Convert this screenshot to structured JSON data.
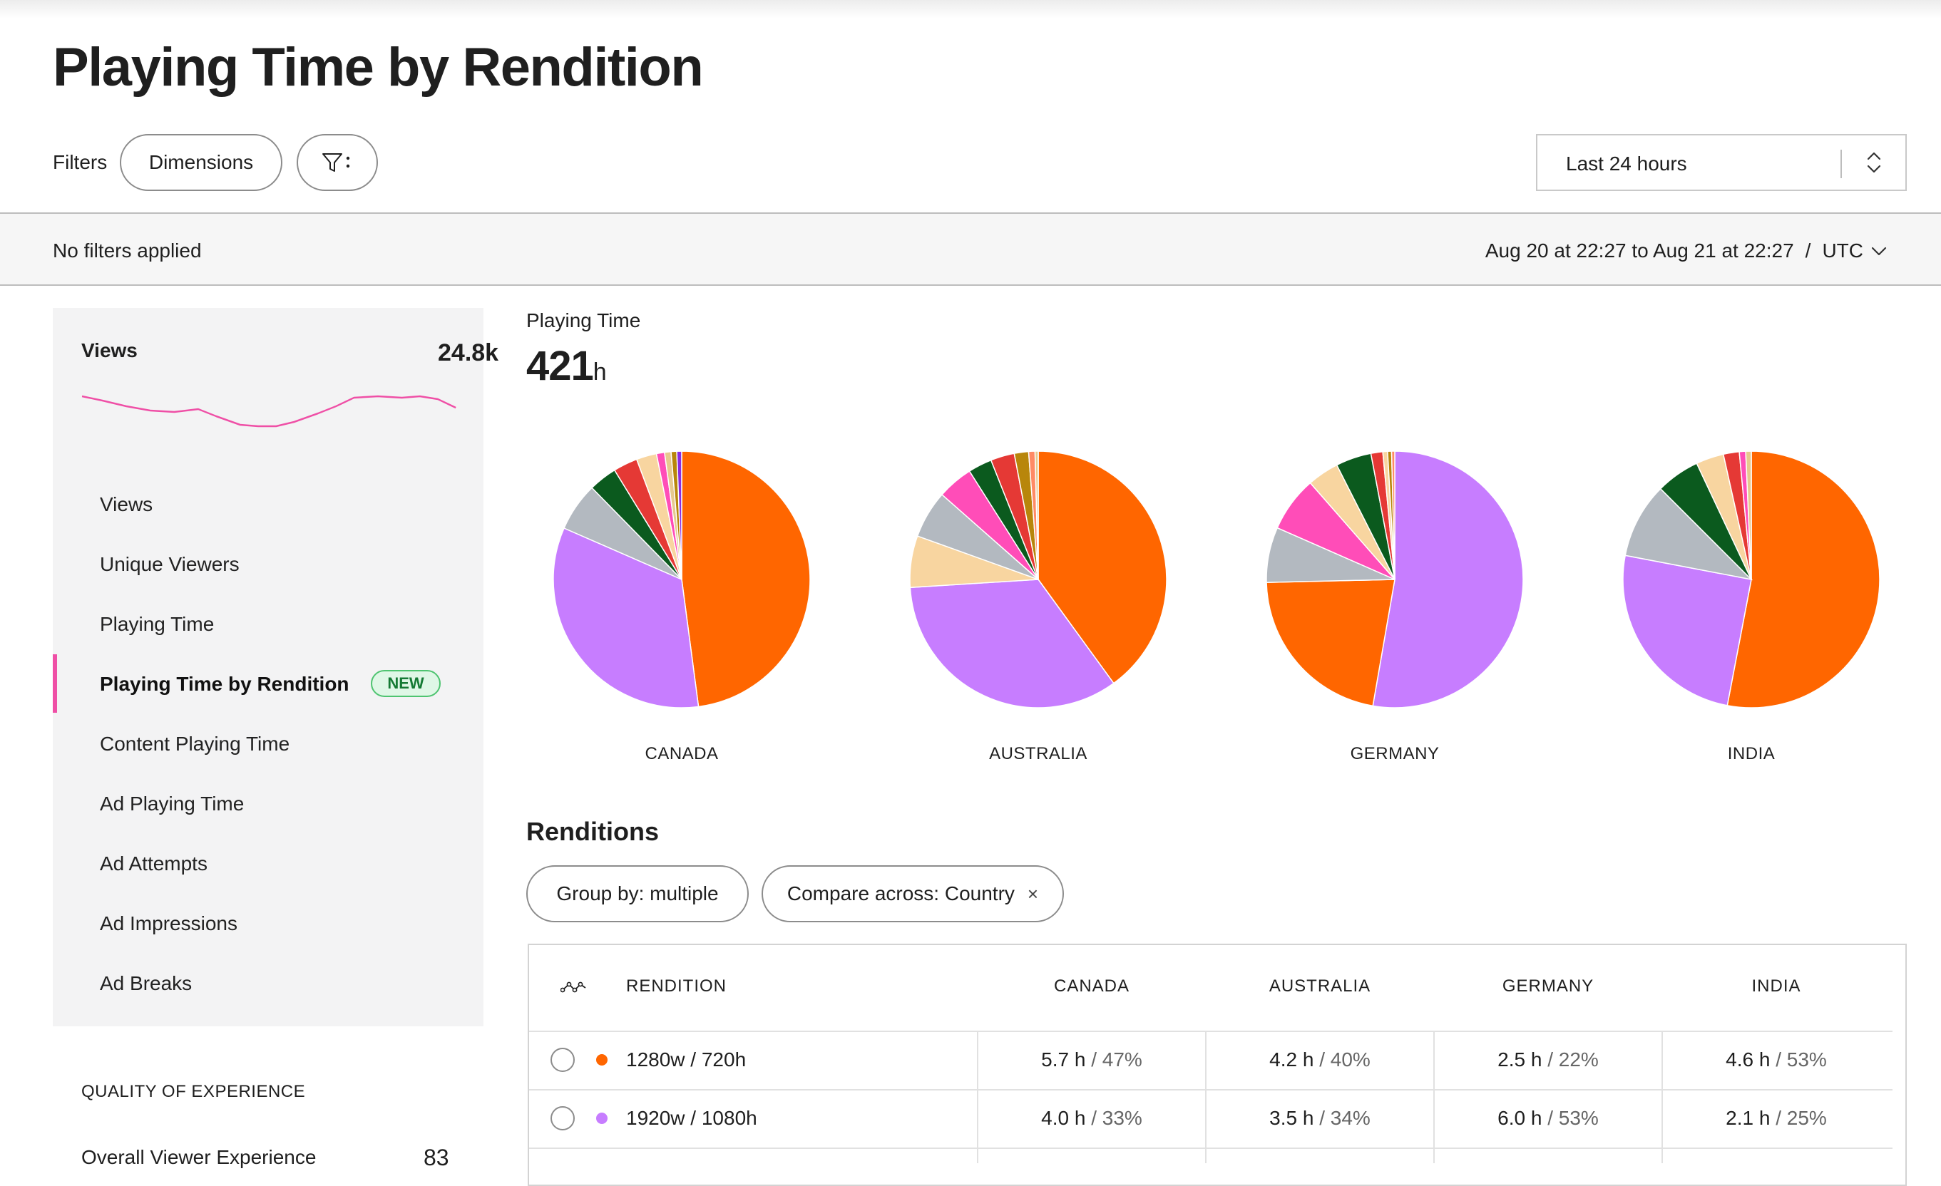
{
  "page": {
    "title": "Playing Time by Rendition"
  },
  "filters": {
    "label": "Filters",
    "dimensions_label": "Dimensions",
    "time_range": "Last 24 hours",
    "status": "No filters applied",
    "date_range": "Aug 20 at 22:27 to Aug 21 at 22:27",
    "separator": "/",
    "timezone": "UTC"
  },
  "sidebar": {
    "views_title": "Views",
    "views_value": "24.8k",
    "sparkline_color": "#ef4fa6",
    "nav": [
      {
        "label": "Views"
      },
      {
        "label": "Unique Viewers"
      },
      {
        "label": "Playing Time"
      },
      {
        "label": "Playing Time by Rendition",
        "badge": "NEW",
        "active": true
      },
      {
        "label": "Content Playing Time"
      },
      {
        "label": "Ad Playing Time"
      },
      {
        "label": "Ad Attempts"
      },
      {
        "label": "Ad Impressions"
      },
      {
        "label": "Ad Breaks"
      }
    ],
    "qoe_title": "QUALITY OF EXPERIENCE",
    "overall_label": "Overall Viewer Experience",
    "overall_value": "83"
  },
  "metric": {
    "label": "Playing Time",
    "value": "421",
    "unit": "h"
  },
  "renditions": {
    "title": "Renditions",
    "group_by": "Group by: multiple",
    "compare": "Compare across: Country",
    "compare_close": "×",
    "columns": [
      "RENDITION",
      "CANADA",
      "AUSTRALIA",
      "GERMANY",
      "INDIA"
    ],
    "rows": [
      {
        "name": "1280w / 720h",
        "color": "#ff6600",
        "cells": [
          {
            "h": "5.7 h",
            "p": "/ 47%"
          },
          {
            "h": "4.2 h",
            "p": "/ 40%"
          },
          {
            "h": "2.5 h",
            "p": "/ 22%"
          },
          {
            "h": "4.6 h",
            "p": "/ 53%"
          }
        ]
      },
      {
        "name": "1920w / 1080h",
        "color": "#c77dff",
        "cells": [
          {
            "h": "4.0 h",
            "p": "/ 33%"
          },
          {
            "h": "3.5 h",
            "p": "/ 34%"
          },
          {
            "h": "6.0 h",
            "p": "/ 53%"
          },
          {
            "h": "2.1 h",
            "p": "/ 25%"
          }
        ]
      }
    ]
  },
  "chart_data": [
    {
      "type": "pie",
      "label": "CANADA",
      "values": [
        47,
        33,
        6,
        3.5,
        3,
        2.5,
        1,
        0.8,
        0.7,
        0.6
      ],
      "colors": [
        "#ff6600",
        "#c77dff",
        "#b3b9c0",
        "#0b5a1e",
        "#e53935",
        "#f8d5a0",
        "#ff4db8",
        "#e6c98f",
        "#b8860b",
        "#8a2be2"
      ]
    },
    {
      "type": "pie",
      "label": "AUSTRALIA",
      "values": [
        40,
        34,
        6.5,
        6,
        4.5,
        3,
        3,
        1.8,
        0.8,
        0.4
      ],
      "colors": [
        "#ff6600",
        "#c77dff",
        "#f8d5a0",
        "#b3b9c0",
        "#ff4db8",
        "#0b5a1e",
        "#e53935",
        "#b8860b",
        "#ff8a65",
        "#e6c98f"
      ]
    },
    {
      "type": "pie",
      "label": "GERMANY",
      "values": [
        53,
        22,
        7,
        7,
        4,
        4.5,
        1.5,
        0.6,
        0.5,
        0.4
      ],
      "colors": [
        "#c77dff",
        "#ff6600",
        "#b3b9c0",
        "#ff4db8",
        "#f8d5a0",
        "#0b5a1e",
        "#e53935",
        "#f8d5a0",
        "#b8860b",
        "#ff8a65"
      ]
    },
    {
      "type": "pie",
      "label": "INDIA",
      "values": [
        53,
        25,
        9.5,
        5.5,
        3.5,
        2,
        0.8,
        0.7
      ],
      "colors": [
        "#ff6600",
        "#c77dff",
        "#b3b9c0",
        "#0b5a1e",
        "#f8d5a0",
        "#e53935",
        "#ff4db8",
        "#e6c98f"
      ]
    }
  ]
}
